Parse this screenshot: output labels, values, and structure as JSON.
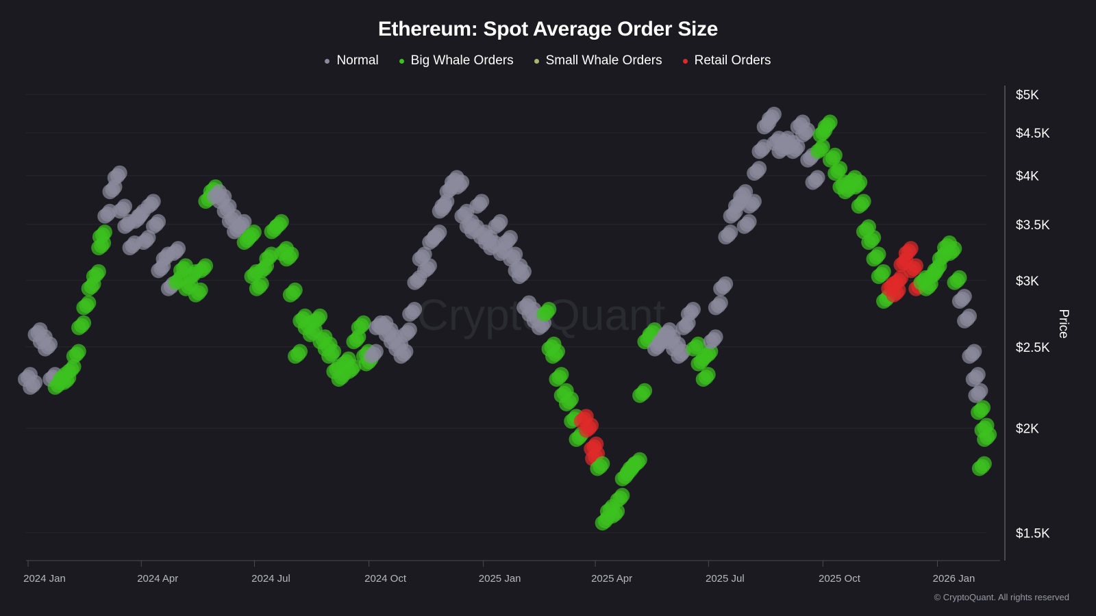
{
  "chart_data": {
    "type": "scatter",
    "title": "Ethereum: Spot Average Order Size",
    "ylabel": "Price",
    "xlabel": "",
    "y_scale": "log",
    "ylim": [
      1400,
      5100
    ],
    "xlim": [
      "2024-01-01",
      "2026-02-20"
    ],
    "grid": "horizontal",
    "legend_position": "top",
    "watermark": "CryptoQuant",
    "y_ticks": [
      {
        "value": 5000,
        "label": "$5K"
      },
      {
        "value": 4500,
        "label": "$4.5K"
      },
      {
        "value": 4000,
        "label": "$4K"
      },
      {
        "value": 3500,
        "label": "$3.5K"
      },
      {
        "value": 3000,
        "label": "$3K"
      },
      {
        "value": 2500,
        "label": "$2.5K"
      },
      {
        "value": 2000,
        "label": "$2K"
      },
      {
        "value": 1500,
        "label": "$1.5K"
      }
    ],
    "x_ticks": [
      {
        "value": "2024-01-01",
        "label": "2024 Jan"
      },
      {
        "value": "2024-04-01",
        "label": "2024 Apr"
      },
      {
        "value": "2024-07-01",
        "label": "2024 Jul"
      },
      {
        "value": "2024-10-01",
        "label": "2024 Oct"
      },
      {
        "value": "2025-01-01",
        "label": "2025 Jan"
      },
      {
        "value": "2025-04-01",
        "label": "2025 Apr"
      },
      {
        "value": "2025-07-01",
        "label": "2025 Jul"
      },
      {
        "value": "2025-10-01",
        "label": "2025 Oct"
      },
      {
        "value": "2026-01-01",
        "label": "2026 Jan"
      }
    ],
    "series": [
      {
        "key": "n",
        "name": "Normal",
        "color": "#8a8a9c"
      },
      {
        "key": "b",
        "name": "Big Whale Orders",
        "color": "#3cc21e"
      },
      {
        "key": "s",
        "name": "Small Whale Orders",
        "color": "#a8b870"
      },
      {
        "key": "r",
        "name": "Retail Orders",
        "color": "#e02a2a"
      }
    ],
    "points": [
      [
        "2024-01-01",
        2300,
        "n"
      ],
      [
        "2024-01-05",
        2250,
        "n"
      ],
      [
        "2024-01-09",
        2600,
        "n"
      ],
      [
        "2024-01-13",
        2550,
        "n"
      ],
      [
        "2024-01-17",
        2500,
        "n"
      ],
      [
        "2024-01-21",
        2300,
        "n"
      ],
      [
        "2024-01-25",
        2250,
        "b"
      ],
      [
        "2024-01-29",
        2300,
        "b"
      ],
      [
        "2024-02-01",
        2280,
        "b"
      ],
      [
        "2024-02-05",
        2350,
        "b"
      ],
      [
        "2024-02-09",
        2450,
        "b"
      ],
      [
        "2024-02-13",
        2650,
        "b"
      ],
      [
        "2024-02-17",
        2800,
        "b"
      ],
      [
        "2024-02-21",
        2950,
        "b"
      ],
      [
        "2024-02-25",
        3050,
        "b"
      ],
      [
        "2024-02-29",
        3300,
        "b"
      ],
      [
        "2024-03-01",
        3400,
        "b"
      ],
      [
        "2024-03-05",
        3600,
        "n"
      ],
      [
        "2024-03-09",
        3850,
        "n"
      ],
      [
        "2024-03-13",
        4000,
        "n"
      ],
      [
        "2024-03-17",
        3650,
        "n"
      ],
      [
        "2024-03-21",
        3500,
        "n"
      ],
      [
        "2024-03-25",
        3300,
        "n"
      ],
      [
        "2024-03-29",
        3550,
        "n"
      ],
      [
        "2024-04-01",
        3600,
        "n"
      ],
      [
        "2024-04-05",
        3350,
        "n"
      ],
      [
        "2024-04-09",
        3700,
        "n"
      ],
      [
        "2024-04-13",
        3500,
        "n"
      ],
      [
        "2024-04-17",
        3100,
        "n"
      ],
      [
        "2024-04-21",
        3200,
        "n"
      ],
      [
        "2024-04-25",
        2950,
        "n"
      ],
      [
        "2024-04-29",
        3250,
        "n"
      ],
      [
        "2024-05-01",
        3000,
        "b"
      ],
      [
        "2024-05-05",
        3100,
        "b"
      ],
      [
        "2024-05-09",
        2950,
        "b"
      ],
      [
        "2024-05-13",
        3050,
        "b"
      ],
      [
        "2024-05-17",
        2900,
        "b"
      ],
      [
        "2024-05-21",
        3100,
        "b"
      ],
      [
        "2024-05-25",
        3750,
        "b"
      ],
      [
        "2024-05-29",
        3850,
        "b"
      ],
      [
        "2024-06-01",
        3800,
        "n"
      ],
      [
        "2024-06-05",
        3750,
        "n"
      ],
      [
        "2024-06-09",
        3650,
        "n"
      ],
      [
        "2024-06-13",
        3550,
        "n"
      ],
      [
        "2024-06-17",
        3450,
        "n"
      ],
      [
        "2024-06-21",
        3500,
        "n"
      ],
      [
        "2024-06-25",
        3350,
        "b"
      ],
      [
        "2024-06-29",
        3400,
        "b"
      ],
      [
        "2024-07-01",
        3050,
        "b"
      ],
      [
        "2024-07-05",
        2950,
        "b"
      ],
      [
        "2024-07-09",
        3100,
        "b"
      ],
      [
        "2024-07-13",
        3200,
        "b"
      ],
      [
        "2024-07-17",
        3450,
        "b"
      ],
      [
        "2024-07-21",
        3500,
        "b"
      ],
      [
        "2024-07-25",
        3250,
        "b"
      ],
      [
        "2024-07-29",
        3200,
        "b"
      ],
      [
        "2024-08-01",
        2900,
        "b"
      ],
      [
        "2024-08-05",
        2450,
        "b"
      ],
      [
        "2024-08-09",
        2700,
        "b"
      ],
      [
        "2024-08-13",
        2650,
        "b"
      ],
      [
        "2024-08-17",
        2600,
        "b"
      ],
      [
        "2024-08-21",
        2700,
        "b"
      ],
      [
        "2024-08-25",
        2550,
        "b"
      ],
      [
        "2024-08-29",
        2500,
        "b"
      ],
      [
        "2024-09-01",
        2450,
        "b"
      ],
      [
        "2024-09-05",
        2350,
        "b"
      ],
      [
        "2024-09-09",
        2300,
        "b"
      ],
      [
        "2024-09-13",
        2400,
        "b"
      ],
      [
        "2024-09-17",
        2350,
        "b"
      ],
      [
        "2024-09-21",
        2550,
        "b"
      ],
      [
        "2024-09-25",
        2650,
        "b"
      ],
      [
        "2024-09-29",
        2450,
        "b"
      ],
      [
        "2024-10-01",
        2400,
        "b"
      ],
      [
        "2024-10-05",
        2450,
        "n"
      ],
      [
        "2024-10-09",
        2650,
        "n"
      ],
      [
        "2024-10-13",
        2650,
        "n"
      ],
      [
        "2024-10-17",
        2600,
        "n"
      ],
      [
        "2024-10-21",
        2550,
        "n"
      ],
      [
        "2024-10-25",
        2500,
        "n"
      ],
      [
        "2024-10-29",
        2450,
        "n"
      ],
      [
        "2024-11-01",
        2600,
        "n"
      ],
      [
        "2024-11-05",
        2750,
        "n"
      ],
      [
        "2024-11-09",
        3000,
        "n"
      ],
      [
        "2024-11-13",
        3200,
        "n"
      ],
      [
        "2024-11-17",
        3100,
        "n"
      ],
      [
        "2024-11-21",
        3350,
        "n"
      ],
      [
        "2024-11-25",
        3400,
        "n"
      ],
      [
        "2024-11-29",
        3650,
        "n"
      ],
      [
        "2024-12-01",
        3700,
        "n"
      ],
      [
        "2024-12-05",
        3850,
        "n"
      ],
      [
        "2024-12-09",
        3950,
        "n"
      ],
      [
        "2024-12-13",
        3900,
        "n"
      ],
      [
        "2024-12-17",
        3600,
        "n"
      ],
      [
        "2024-12-21",
        3500,
        "n"
      ],
      [
        "2024-12-25",
        3450,
        "n"
      ],
      [
        "2024-12-29",
        3700,
        "n"
      ],
      [
        "2025-01-01",
        3400,
        "n"
      ],
      [
        "2025-01-05",
        3350,
        "n"
      ],
      [
        "2025-01-09",
        3300,
        "n"
      ],
      [
        "2025-01-13",
        3500,
        "n"
      ],
      [
        "2025-01-17",
        3250,
        "n"
      ],
      [
        "2025-01-21",
        3350,
        "n"
      ],
      [
        "2025-01-25",
        3200,
        "n"
      ],
      [
        "2025-01-29",
        3100,
        "n"
      ],
      [
        "2025-02-01",
        3050,
        "n"
      ],
      [
        "2025-02-05",
        2800,
        "n"
      ],
      [
        "2025-02-09",
        2750,
        "n"
      ],
      [
        "2025-02-13",
        2700,
        "n"
      ],
      [
        "2025-02-17",
        2650,
        "n"
      ],
      [
        "2025-02-21",
        2750,
        "b"
      ],
      [
        "2025-02-25",
        2500,
        "b"
      ],
      [
        "2025-02-28",
        2450,
        "b"
      ],
      [
        "2025-03-03",
        2300,
        "b"
      ],
      [
        "2025-03-07",
        2200,
        "b"
      ],
      [
        "2025-03-11",
        2150,
        "b"
      ],
      [
        "2025-03-15",
        2050,
        "b"
      ],
      [
        "2025-03-19",
        1950,
        "b"
      ],
      [
        "2025-03-23",
        2050,
        "r"
      ],
      [
        "2025-03-27",
        2000,
        "r"
      ],
      [
        "2025-03-31",
        1900,
        "r"
      ],
      [
        "2025-04-01",
        1850,
        "r"
      ],
      [
        "2025-04-05",
        1800,
        "b"
      ],
      [
        "2025-04-09",
        1550,
        "b"
      ],
      [
        "2025-04-13",
        1600,
        "b"
      ],
      [
        "2025-04-17",
        1580,
        "b"
      ],
      [
        "2025-04-21",
        1650,
        "b"
      ],
      [
        "2025-04-25",
        1750,
        "b"
      ],
      [
        "2025-04-29",
        1780,
        "b"
      ],
      [
        "2025-05-01",
        1800,
        "b"
      ],
      [
        "2025-05-05",
        1820,
        "b"
      ],
      [
        "2025-05-09",
        2200,
        "b"
      ],
      [
        "2025-05-13",
        2550,
        "b"
      ],
      [
        "2025-05-17",
        2600,
        "b"
      ],
      [
        "2025-05-21",
        2500,
        "n"
      ],
      [
        "2025-05-25",
        2550,
        "n"
      ],
      [
        "2025-05-29",
        2600,
        "n"
      ],
      [
        "2025-06-01",
        2550,
        "n"
      ],
      [
        "2025-06-05",
        2500,
        "n"
      ],
      [
        "2025-06-09",
        2450,
        "n"
      ],
      [
        "2025-06-13",
        2650,
        "n"
      ],
      [
        "2025-06-17",
        2750,
        "n"
      ],
      [
        "2025-06-21",
        2500,
        "b"
      ],
      [
        "2025-06-25",
        2400,
        "b"
      ],
      [
        "2025-06-29",
        2300,
        "b"
      ],
      [
        "2025-07-01",
        2450,
        "b"
      ],
      [
        "2025-07-05",
        2550,
        "n"
      ],
      [
        "2025-07-09",
        2800,
        "n"
      ],
      [
        "2025-07-13",
        2950,
        "n"
      ],
      [
        "2025-07-17",
        3400,
        "n"
      ],
      [
        "2025-07-21",
        3600,
        "n"
      ],
      [
        "2025-07-25",
        3700,
        "n"
      ],
      [
        "2025-07-29",
        3800,
        "n"
      ],
      [
        "2025-08-01",
        3500,
        "n"
      ],
      [
        "2025-08-05",
        3700,
        "n"
      ],
      [
        "2025-08-09",
        4050,
        "n"
      ],
      [
        "2025-08-13",
        4300,
        "n"
      ],
      [
        "2025-08-17",
        4600,
        "n"
      ],
      [
        "2025-08-21",
        4700,
        "n"
      ],
      [
        "2025-08-25",
        4400,
        "n"
      ],
      [
        "2025-08-29",
        4300,
        "n"
      ],
      [
        "2025-09-01",
        4400,
        "n"
      ],
      [
        "2025-09-05",
        4350,
        "n"
      ],
      [
        "2025-09-09",
        4300,
        "n"
      ],
      [
        "2025-09-13",
        4600,
        "n"
      ],
      [
        "2025-09-17",
        4500,
        "n"
      ],
      [
        "2025-09-21",
        4200,
        "n"
      ],
      [
        "2025-09-25",
        3950,
        "n"
      ],
      [
        "2025-09-29",
        4300,
        "b"
      ],
      [
        "2025-10-01",
        4500,
        "b"
      ],
      [
        "2025-10-05",
        4600,
        "b"
      ],
      [
        "2025-10-09",
        4200,
        "b"
      ],
      [
        "2025-10-13",
        4050,
        "b"
      ],
      [
        "2025-10-17",
        3900,
        "b"
      ],
      [
        "2025-10-21",
        3850,
        "b"
      ],
      [
        "2025-10-25",
        3950,
        "b"
      ],
      [
        "2025-10-29",
        3900,
        "b"
      ],
      [
        "2025-11-01",
        3700,
        "b"
      ],
      [
        "2025-11-05",
        3450,
        "b"
      ],
      [
        "2025-11-09",
        3350,
        "b"
      ],
      [
        "2025-11-13",
        3200,
        "b"
      ],
      [
        "2025-11-17",
        3050,
        "b"
      ],
      [
        "2025-11-21",
        2850,
        "b"
      ],
      [
        "2025-11-25",
        2950,
        "r"
      ],
      [
        "2025-11-29",
        2900,
        "r"
      ],
      [
        "2025-12-01",
        3000,
        "r"
      ],
      [
        "2025-12-05",
        3150,
        "r"
      ],
      [
        "2025-12-09",
        3250,
        "r"
      ],
      [
        "2025-12-13",
        3100,
        "r"
      ],
      [
        "2025-12-17",
        2950,
        "r"
      ],
      [
        "2025-12-21",
        3000,
        "b"
      ],
      [
        "2025-12-25",
        2950,
        "b"
      ],
      [
        "2025-12-29",
        3050,
        "b"
      ],
      [
        "2026-01-01",
        3100,
        "b"
      ],
      [
        "2026-01-05",
        3200,
        "b"
      ],
      [
        "2026-01-09",
        3300,
        "b"
      ],
      [
        "2026-01-13",
        3250,
        "b"
      ],
      [
        "2026-01-17",
        3000,
        "b"
      ],
      [
        "2026-01-21",
        2850,
        "n"
      ],
      [
        "2026-01-25",
        2700,
        "n"
      ],
      [
        "2026-01-29",
        2450,
        "n"
      ],
      [
        "2026-02-01",
        2300,
        "n"
      ],
      [
        "2026-02-03",
        2200,
        "n"
      ],
      [
        "2026-02-05",
        2100,
        "b"
      ],
      [
        "2026-02-06",
        1800,
        "b"
      ],
      [
        "2026-02-08",
        2000,
        "b"
      ],
      [
        "2026-02-10",
        1950,
        "b"
      ]
    ]
  },
  "footer": "© CryptoQuant. All rights reserved"
}
